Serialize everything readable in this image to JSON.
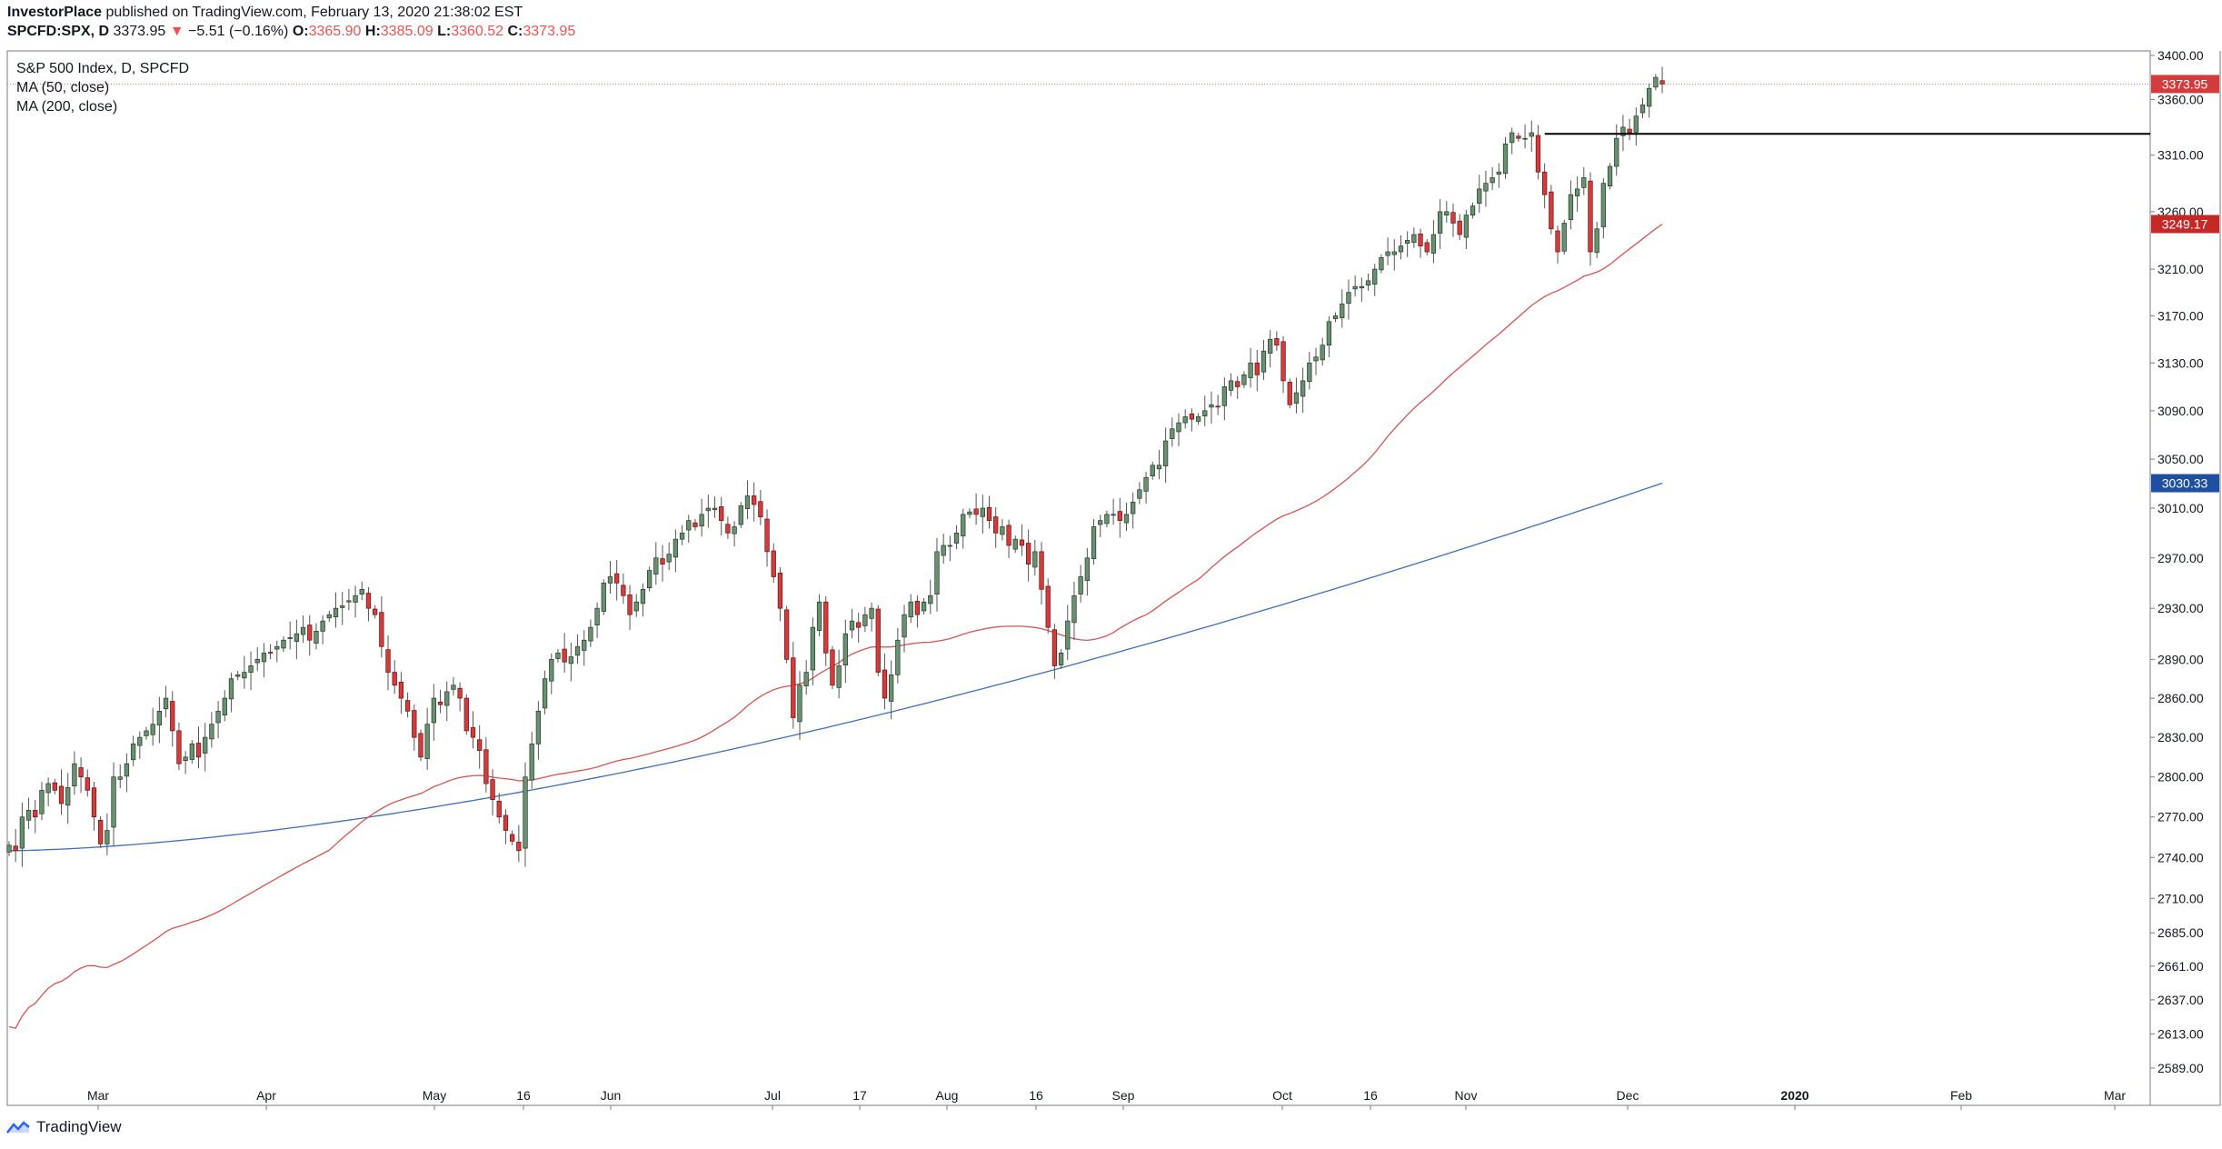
{
  "header": {
    "publisher": "InvestorPlace",
    "published_text": " published on TradingView.com, February 13, 2020 21:38:02 EST",
    "symbol": "SPCFD:SPX, D",
    "last": "3373.95",
    "change_arrow": "▼",
    "change": "−5.51 (−0.16%)",
    "o_label": "O:",
    "o": "3365.90",
    "h_label": "H:",
    "h": "3385.09",
    "l_label": "L:",
    "l": "3360.52",
    "c_label": "C:",
    "c": "3373.95"
  },
  "legend": {
    "title": "S&P 500 Index, D, SPCFD",
    "ma50": "MA (50, close)",
    "ma200": "MA (200, close)"
  },
  "footer": {
    "brand": "TradingView"
  },
  "colors": {
    "up": "#6b8f71",
    "up_border": "#1e3d24",
    "down": "#d23c3c",
    "down_border": "#6b1010",
    "ma50": "#d9534f",
    "ma200": "#3f6fb8",
    "price_line": "#e57373",
    "resistance": "#000000"
  },
  "chart_data": {
    "type": "candlestick",
    "title": "S&P 500 Index, D, SPCFD",
    "x_tick_labels": [
      "Mar",
      "Apr",
      "May",
      "16",
      "Jun",
      "Jul",
      "17",
      "Aug",
      "16",
      "Sep",
      "Oct",
      "16",
      "Nov",
      "Dec",
      "2020",
      "Feb",
      "Mar"
    ],
    "y_tick_labels": [
      "3400.00",
      "3360.00",
      "3310.00",
      "3260.00",
      "3210.00",
      "3170.00",
      "3130.00",
      "3090.00",
      "3050.00",
      "3010.00",
      "2970.00",
      "2930.00",
      "2890.00",
      "2860.00",
      "2830.00",
      "2800.00",
      "2770.00",
      "2740.00",
      "2710.00",
      "2685.00",
      "2661.00",
      "2637.00",
      "2613.00",
      "2589.00"
    ],
    "y_tick_values": [
      3400,
      3360,
      3310,
      3260,
      3210,
      3170,
      3130,
      3090,
      3050,
      3010,
      2970,
      2930,
      2890,
      2860,
      2830,
      2800,
      2770,
      2740,
      2710,
      2685,
      2661,
      2637,
      2613,
      2589
    ],
    "y_scale": "log",
    "ylim": [
      2575,
      3420
    ],
    "price_badges": [
      {
        "label": "3373.95",
        "value": 3373.95,
        "color": "#d23c3c"
      },
      {
        "label": "3249.17",
        "value": 3249.17,
        "color": "#c62828"
      },
      {
        "label": "3030.33",
        "value": 3030.33,
        "color": "#1e4fa0"
      }
    ],
    "resistance_level": 3329,
    "closes": [
      2749,
      2745,
      2770,
      2775,
      2770,
      2790,
      2795,
      2790,
      2780,
      2792,
      2810,
      2800,
      2790,
      2770,
      2750,
      2760,
      2800,
      2800,
      2810,
      2825,
      2830,
      2835,
      2840,
      2850,
      2860,
      2835,
      2810,
      2815,
      2825,
      2815,
      2830,
      2840,
      2850,
      2860,
      2875,
      2878,
      2880,
      2885,
      2890,
      2895,
      2895,
      2900,
      2905,
      2907,
      2910,
      2915,
      2905,
      2912,
      2920,
      2925,
      2930,
      2932,
      2936,
      2940,
      2945,
      2930,
      2925,
      2900,
      2880,
      2870,
      2860,
      2850,
      2830,
      2815,
      2840,
      2860,
      2855,
      2865,
      2870,
      2860,
      2835,
      2830,
      2820,
      2795,
      2783,
      2770,
      2760,
      2752,
      2745,
      2800,
      2825,
      2850,
      2875,
      2890,
      2895,
      2888,
      2892,
      2900,
      2905,
      2915,
      2930,
      2950,
      2955,
      2950,
      2940,
      2925,
      2935,
      2945,
      2960,
      2970,
      2965,
      2973,
      2985,
      2990,
      3000,
      2995,
      3005,
      3010,
      3010,
      3000,
      2990,
      2995,
      3012,
      3020,
      3013,
      3003,
      2975,
      2955,
      2930,
      2890,
      2845,
      2870,
      2880,
      2915,
      2935,
      2895,
      2870,
      2885,
      2910,
      2920,
      2915,
      2925,
      2930,
      2880,
      2860,
      2878,
      2905,
      2925,
      2935,
      2925,
      2935,
      2940,
      2975,
      2980,
      2980,
      2990,
      3005,
      3007,
      3005,
      3010,
      3000,
      2990,
      2995,
      2980,
      2985,
      2980,
      2965,
      2975,
      2945,
      2915,
      2885,
      2895,
      2920,
      2940,
      2955,
      2970,
      2995,
      3000,
      3005,
      3005,
      3000,
      3005,
      3015,
      3025,
      3035,
      3045,
      3045,
      3065,
      3075,
      3080,
      3085,
      3083,
      3085,
      3090,
      3095,
      3093,
      3110,
      3115,
      3110,
      3120,
      3130,
      3120,
      3140,
      3150,
      3145,
      3115,
      3095,
      3105,
      3115,
      3130,
      3135,
      3145,
      3165,
      3170,
      3180,
      3190,
      3195,
      3195,
      3200,
      3210,
      3220,
      3225,
      3225,
      3230,
      3235,
      3240,
      3230,
      3225,
      3240,
      3260,
      3260,
      3250,
      3240,
      3257,
      3265,
      3280,
      3285,
      3290,
      3295,
      3320,
      3330,
      3325,
      3325,
      3330,
      3295,
      3275,
      3245,
      3225,
      3250,
      3275,
      3280,
      3290,
      3225,
      3245,
      3285,
      3300,
      3325,
      3335,
      3330,
      3345,
      3355,
      3370,
      3380,
      3374
    ]
  }
}
